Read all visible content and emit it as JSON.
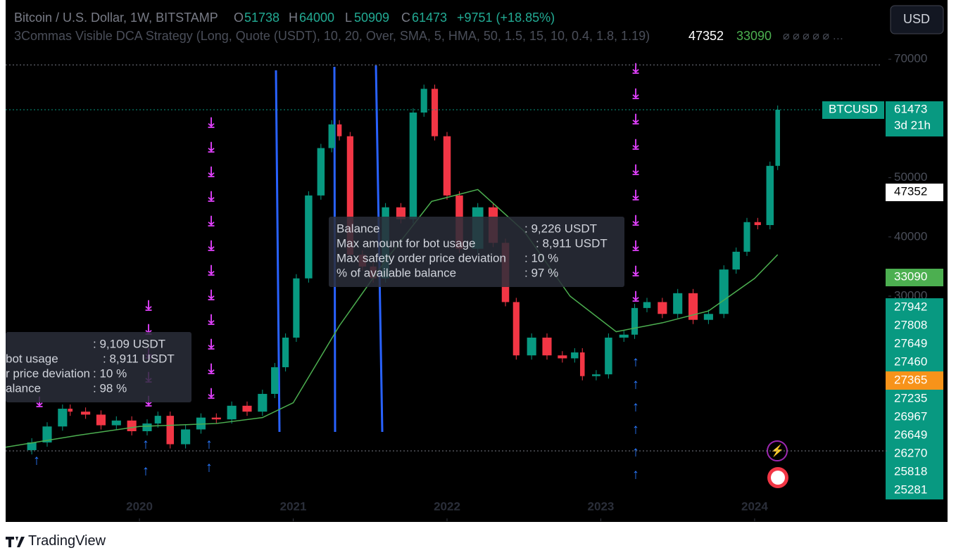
{
  "header": {
    "symbol": "Bitcoin / U.S. Dollar, 1W, BITSTAMP",
    "o_label": "O",
    "open": "51738",
    "h_label": "H",
    "high": "64000",
    "l_label": "L",
    "low": "50909",
    "c_label": "C",
    "close": "61473",
    "change": "+9751 (+18.85%)",
    "strategy": "3Commas Visible DCA Strategy (Long, Quote (USDT), 10, 20, Over, SMA, 5, HMA, 50, 1.5, 15, 10, 0.4, 1.8, 1.19)",
    "strategy_v1": "47352",
    "strategy_v2": "33090",
    "currency_button": "USD"
  },
  "chart_data": {
    "type": "candlestick",
    "xlim": [
      2019.13,
      2024.87
    ],
    "ylim": [
      -8000,
      80000
    ],
    "xticks": [
      {
        "value": 2020,
        "label": "2020"
      },
      {
        "value": 2021,
        "label": "2021"
      },
      {
        "value": 2022,
        "label": "2022"
      },
      {
        "value": 2023,
        "label": "2023"
      },
      {
        "value": 2024,
        "label": "2024"
      }
    ],
    "yticks": [
      70000,
      50000,
      40000,
      30000
    ],
    "series": [
      {
        "name": "BTCUSD",
        "up_color": "#089981",
        "down_color": "#f23645",
        "x": [
          2019.2,
          2019.3,
          2019.4,
          2019.5,
          2019.55,
          2019.65,
          2019.75,
          2019.85,
          2019.95,
          2020.05,
          2020.12,
          2020.2,
          2020.3,
          2020.4,
          2020.5,
          2020.6,
          2020.7,
          2020.8,
          2020.88,
          2020.95,
          2021.02,
          2021.1,
          2021.18,
          2021.25,
          2021.3,
          2021.37,
          2021.45,
          2021.52,
          2021.6,
          2021.7,
          2021.78,
          2021.85,
          2021.92,
          2022.0,
          2022.08,
          2022.2,
          2022.3,
          2022.38,
          2022.45,
          2022.55,
          2022.65,
          2022.75,
          2022.83,
          2022.88,
          2022.97,
          2023.05,
          2023.15,
          2023.22,
          2023.3,
          2023.4,
          2023.5,
          2023.6,
          2023.7,
          2023.8,
          2023.88,
          2023.95,
          2024.02,
          2024.1,
          2024.15
        ],
        "values": [
          4000,
          5300,
          8000,
          11000,
          10500,
          10000,
          8200,
          9000,
          7200,
          8500,
          9800,
          5000,
          7500,
          9500,
          9200,
          11500,
          10500,
          13500,
          18000,
          23000,
          33000,
          47000,
          55000,
          59000,
          57000,
          37000,
          35000,
          33000,
          45000,
          43000,
          61000,
          65000,
          57000,
          47000,
          38000,
          45000,
          39000,
          29000,
          20000,
          23000,
          20000,
          19500,
          20500,
          16500,
          16800,
          23000,
          23500,
          28000,
          29000,
          27000,
          30500,
          26000,
          27000,
          34500,
          37500,
          42500,
          42000,
          52000,
          61473
        ]
      },
      {
        "color": "#4caf50",
        "x": [
          2019.13,
          2019.6,
          2020.0,
          2020.5,
          2020.8,
          2021.0,
          2021.3,
          2021.6,
          2021.9,
          2022.2,
          2022.5,
          2022.8,
          2023.1,
          2023.4,
          2023.7,
          2024.0,
          2024.15
        ],
        "values": [
          4500,
          6500,
          8000,
          8500,
          9500,
          12000,
          25000,
          36000,
          46000,
          48000,
          41000,
          30000,
          24000,
          25500,
          27500,
          33000,
          37000
        ]
      }
    ],
    "price_badges": [
      {
        "label": "BTCUSD",
        "value": "61473",
        "timer": "3d 21h"
      },
      {
        "value": "47352"
      },
      {
        "value": "33090"
      }
    ],
    "level_badges": [
      "27942",
      "27808",
      "27649",
      "27460",
      "27365",
      "27235",
      "26967",
      "26649",
      "26270",
      "25818",
      "25281"
    ]
  },
  "tooltips": [
    {
      "rows": [
        [
          "Balance",
          ": 9,226 USDT"
        ],
        [
          "Max amount for bot usage",
          ": 8,911 USDT"
        ],
        [
          "Max safety order price deviation",
          ": 10 %"
        ],
        [
          "% of available balance",
          ": 97 %"
        ]
      ]
    },
    {
      "rows": [
        [
          "",
          ": 9,109 USDT"
        ],
        [
          "bot usage",
          ": 8,911 USDT"
        ],
        [
          "r price deviation",
          ": 10 %"
        ],
        [
          "alance",
          ": 98 %"
        ]
      ]
    }
  ],
  "footer": {
    "brand": "TradingView"
  }
}
